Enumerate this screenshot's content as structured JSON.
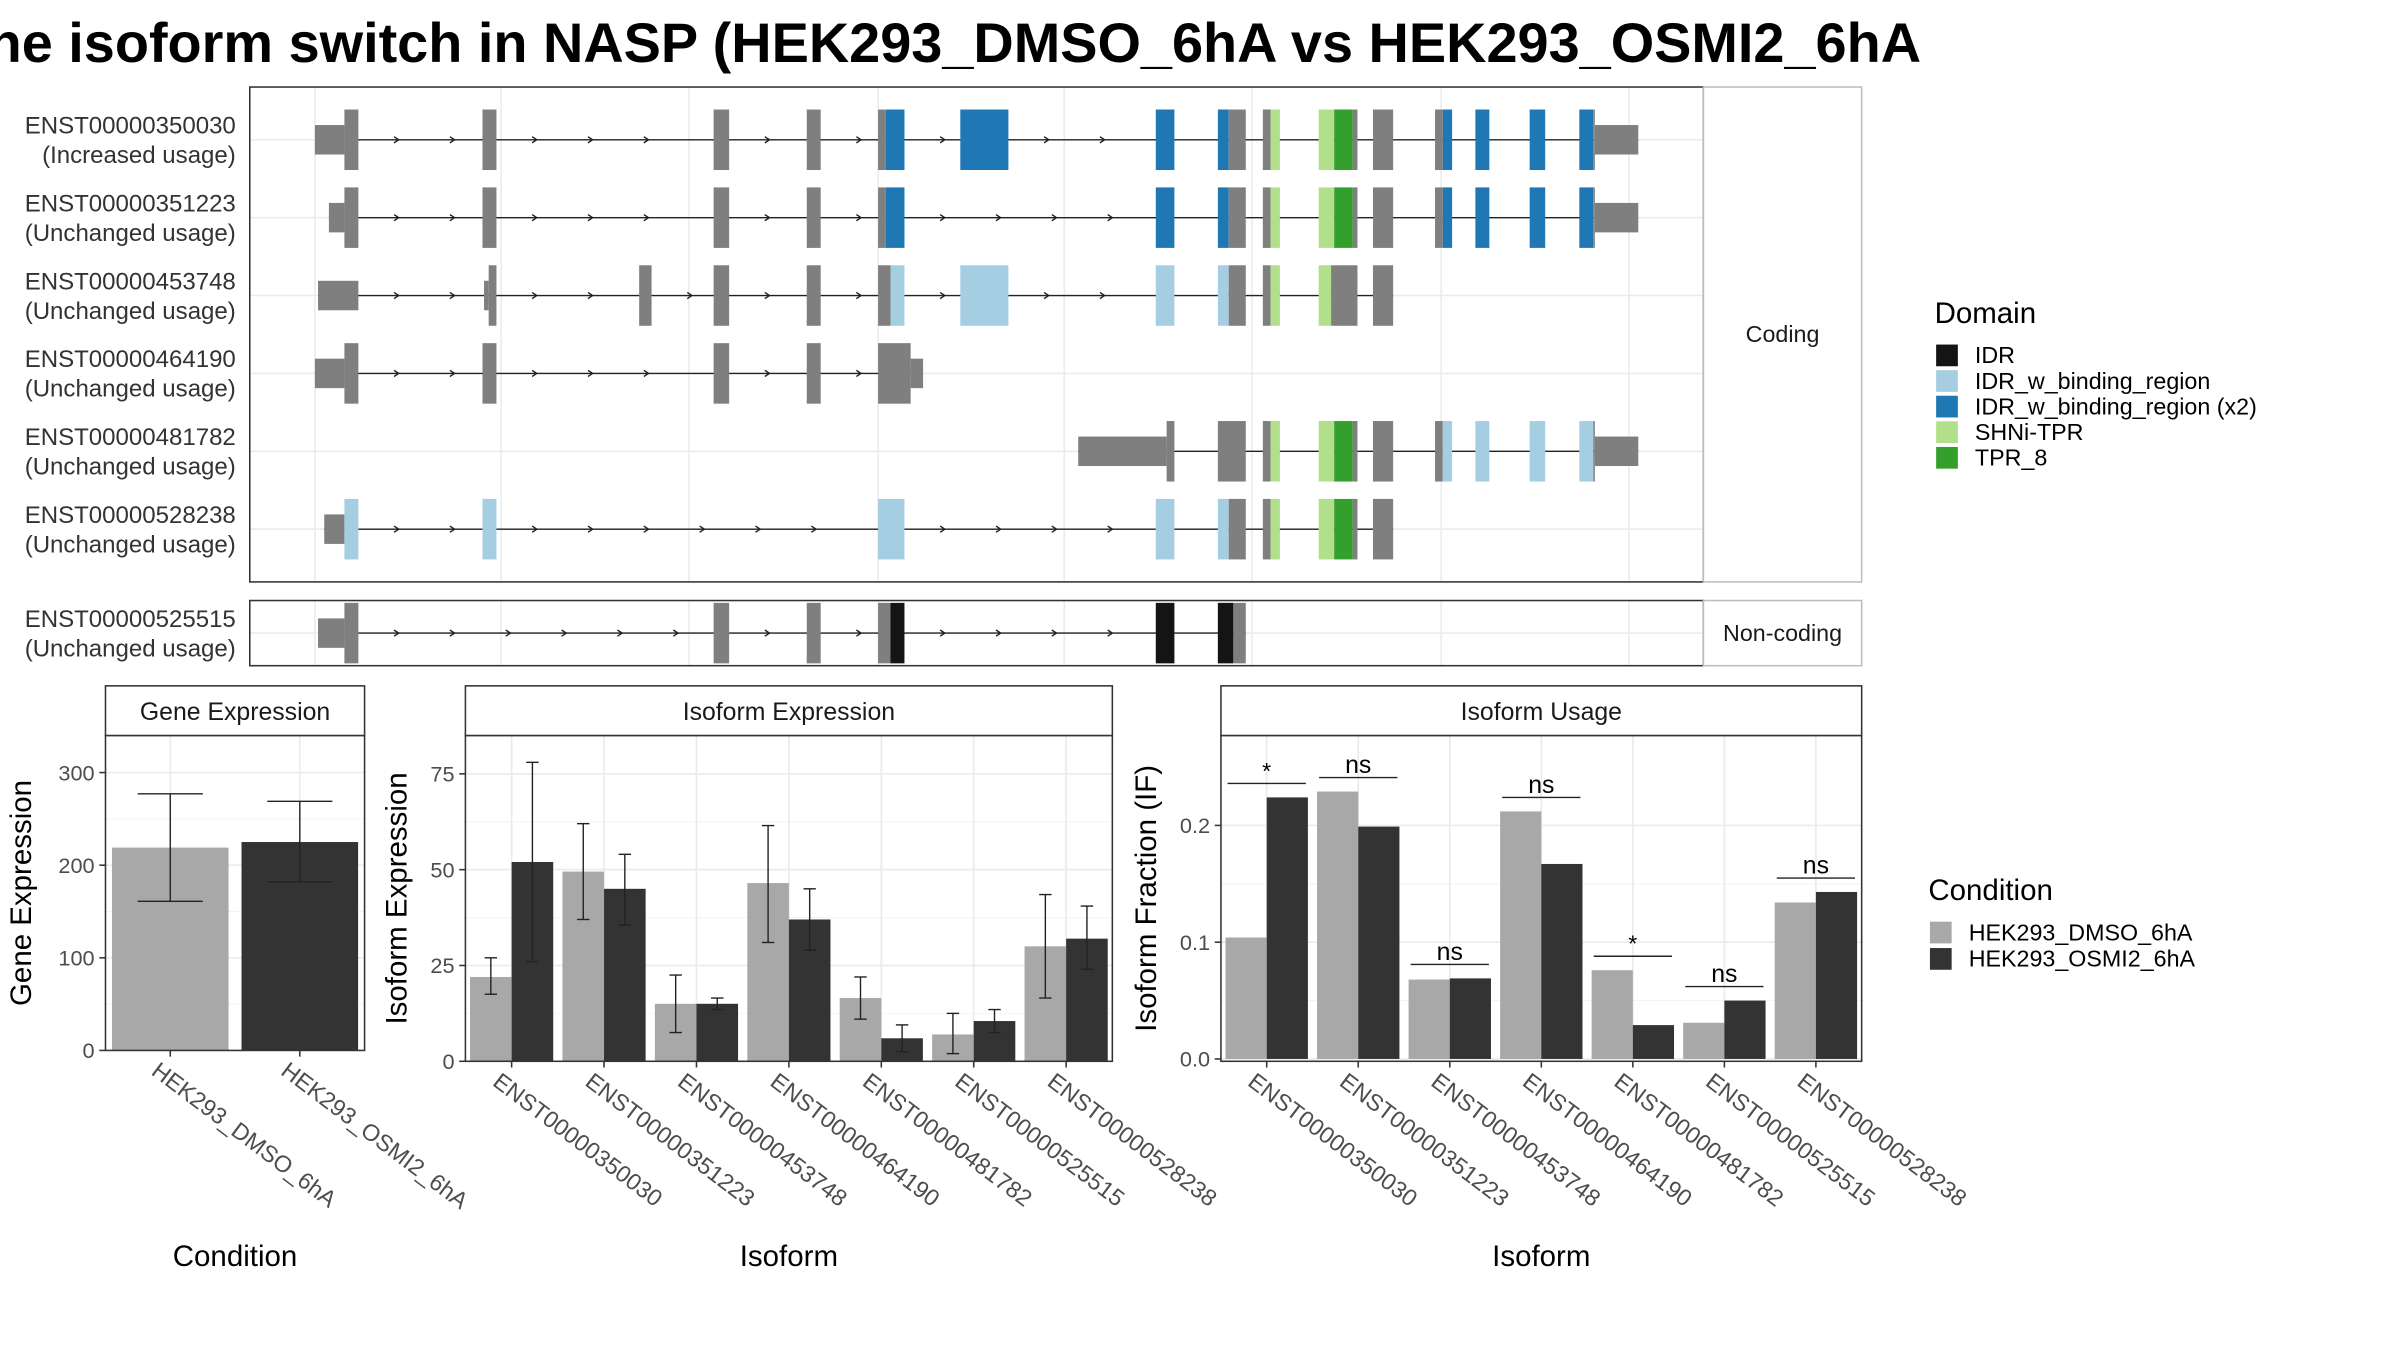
{
  "title": "he isoform switch in NASP (HEK293_DMSO_6hA vs HEK293_OSMI2_6hA",
  "colors": {
    "exon": "#7f7f7f",
    "IDR": "#141414",
    "IDR_w_binding_region": "#a6cee3",
    "IDR_w_binding_region (x2)": "#1f78b4",
    "SHNi-TPR": "#b2df8a",
    "TPR_8": "#33a02c",
    "HEK293_DMSO_6hA": "#a8a8a8",
    "HEK293_OSMI2_6hA": "#333333"
  },
  "structure": {
    "coding_strip": "Coding",
    "noncoding_strip": "Non-coding",
    "transcripts": [
      {
        "id": "ENST00000350030",
        "usage": "(Increased usage)",
        "group": "coding",
        "utr": [
          [
            203,
            222
          ],
          [
            1028,
            1056
          ]
        ],
        "exons": [
          [
            222,
            231
          ],
          [
            311,
            320
          ],
          [
            460,
            470
          ],
          [
            520,
            529
          ],
          [
            566,
            571
          ],
          [
            571,
            583,
            "IDR_w_binding_region (x2)"
          ],
          [
            619,
            650,
            "IDR_w_binding_region (x2)"
          ],
          [
            745,
            757,
            "IDR_w_binding_region (x2)"
          ],
          [
            785,
            792,
            "IDR_w_binding_region (x2)"
          ],
          [
            792,
            803
          ],
          [
            814,
            819
          ],
          [
            819,
            825,
            "SHNi-TPR"
          ],
          [
            850,
            860,
            "SHNi-TPR"
          ],
          [
            860,
            872,
            "TPR_8"
          ],
          [
            872,
            875
          ],
          [
            885,
            898
          ],
          [
            925,
            930
          ],
          [
            930,
            936,
            "IDR_w_binding_region (x2)"
          ],
          [
            951,
            960,
            "IDR_w_binding_region (x2)"
          ],
          [
            986,
            996,
            "IDR_w_binding_region (x2)"
          ],
          [
            1018,
            1027,
            "IDR_w_binding_region (x2)"
          ],
          [
            1027,
            1028
          ]
        ]
      },
      {
        "id": "ENST00000351223",
        "usage": "(Unchanged usage)",
        "group": "coding",
        "utr": [
          [
            212,
            222
          ],
          [
            1028,
            1056
          ]
        ],
        "exons": [
          [
            222,
            231
          ],
          [
            311,
            320
          ],
          [
            460,
            470
          ],
          [
            520,
            529
          ],
          [
            566,
            571
          ],
          [
            571,
            583,
            "IDR_w_binding_region (x2)"
          ],
          [
            745,
            757,
            "IDR_w_binding_region (x2)"
          ],
          [
            785,
            792,
            "IDR_w_binding_region (x2)"
          ],
          [
            792,
            803
          ],
          [
            814,
            819
          ],
          [
            819,
            825,
            "SHNi-TPR"
          ],
          [
            850,
            860,
            "SHNi-TPR"
          ],
          [
            860,
            872,
            "TPR_8"
          ],
          [
            872,
            875
          ],
          [
            885,
            898
          ],
          [
            925,
            930
          ],
          [
            930,
            936,
            "IDR_w_binding_region (x2)"
          ],
          [
            951,
            960,
            "IDR_w_binding_region (x2)"
          ],
          [
            986,
            996,
            "IDR_w_binding_region (x2)"
          ],
          [
            1018,
            1027,
            "IDR_w_binding_region (x2)"
          ],
          [
            1027,
            1028
          ]
        ]
      },
      {
        "id": "ENST00000453748",
        "usage": "(Unchanged usage)",
        "group": "coding",
        "utr": [
          [
            205,
            231
          ],
          [
            312,
            315
          ]
        ],
        "exons": [
          [
            315,
            320
          ],
          [
            412,
            420
          ],
          [
            460,
            470
          ],
          [
            520,
            529
          ],
          [
            566,
            574
          ],
          [
            574,
            583,
            "IDR_w_binding_region"
          ],
          [
            619,
            650,
            "IDR_w_binding_region"
          ],
          [
            745,
            757,
            "IDR_w_binding_region"
          ],
          [
            785,
            792,
            "IDR_w_binding_region"
          ],
          [
            792,
            803
          ],
          [
            814,
            819
          ],
          [
            819,
            825,
            "SHNi-TPR"
          ],
          [
            850,
            858,
            "SHNi-TPR"
          ],
          [
            858,
            875
          ],
          [
            885,
            898
          ]
        ]
      },
      {
        "id": "ENST00000464190",
        "usage": "(Unchanged usage)",
        "group": "coding",
        "utr": [
          [
            203,
            222
          ],
          [
            587,
            595
          ]
        ],
        "exons": [
          [
            222,
            231
          ],
          [
            311,
            320
          ],
          [
            460,
            470
          ],
          [
            520,
            529
          ],
          [
            566,
            587
          ]
        ]
      },
      {
        "id": "ENST00000481782",
        "usage": "(Unchanged usage)",
        "group": "coding",
        "utr": [
          [
            695,
            752
          ],
          [
            1028,
            1056
          ]
        ],
        "exons": [
          [
            752,
            757
          ],
          [
            785,
            803
          ],
          [
            814,
            819
          ],
          [
            819,
            825,
            "SHNi-TPR"
          ],
          [
            850,
            860,
            "SHNi-TPR"
          ],
          [
            860,
            872,
            "TPR_8"
          ],
          [
            872,
            875
          ],
          [
            885,
            898
          ],
          [
            925,
            930
          ],
          [
            930,
            936,
            "IDR_w_binding_region"
          ],
          [
            951,
            960,
            "IDR_w_binding_region"
          ],
          [
            986,
            996,
            "IDR_w_binding_region"
          ],
          [
            1018,
            1027,
            "IDR_w_binding_region"
          ],
          [
            1027,
            1028
          ]
        ]
      },
      {
        "id": "ENST00000528238",
        "usage": "(Unchanged usage)",
        "group": "coding",
        "utr": [
          [
            209,
            222
          ]
        ],
        "exons": [
          [
            222,
            231,
            "IDR_w_binding_region"
          ],
          [
            311,
            320,
            "IDR_w_binding_region"
          ],
          [
            566,
            583,
            "IDR_w_binding_region"
          ],
          [
            745,
            757,
            "IDR_w_binding_region"
          ],
          [
            785,
            792,
            "IDR_w_binding_region"
          ],
          [
            792,
            803
          ],
          [
            814,
            819
          ],
          [
            819,
            825,
            "SHNi-TPR"
          ],
          [
            850,
            860,
            "SHNi-TPR"
          ],
          [
            860,
            872,
            "TPR_8"
          ],
          [
            872,
            875
          ],
          [
            885,
            898
          ]
        ]
      },
      {
        "id": "ENST00000525515",
        "usage": "(Unchanged usage)",
        "group": "noncoding",
        "utr": [
          [
            205,
            222
          ]
        ],
        "exons": [
          [
            222,
            231
          ],
          [
            460,
            470
          ],
          [
            520,
            529
          ],
          [
            566,
            574
          ],
          [
            574,
            583,
            "IDR"
          ],
          [
            745,
            757,
            "IDR"
          ],
          [
            785,
            795,
            "IDR"
          ],
          [
            795,
            803
          ]
        ]
      }
    ]
  },
  "legends": {
    "domain": {
      "title": "Domain",
      "items": [
        "IDR",
        "IDR_w_binding_region",
        "IDR_w_binding_region (x2)",
        "SHNi-TPR",
        "TPR_8"
      ]
    },
    "condition": {
      "title": "Condition",
      "items": [
        "HEK293_DMSO_6hA",
        "HEK293_OSMI2_6hA"
      ]
    }
  },
  "chart_data": [
    {
      "type": "bar",
      "title": "Gene Expression",
      "xlabel": "Condition",
      "ylabel": "Gene Expression",
      "ylim": [
        0,
        340
      ],
      "yticks": [
        0,
        100,
        200,
        300
      ],
      "categories": [
        "HEK293_DMSO_6hA",
        "HEK293_OSMI2_6hA"
      ],
      "series": [
        {
          "values": [
            219,
            225
          ],
          "err_low": [
            161,
            182
          ],
          "err_high": [
            277,
            269
          ]
        }
      ]
    },
    {
      "type": "bar",
      "title": "Isoform Expression",
      "xlabel": "Isoform",
      "ylabel": "Isoform Expression",
      "ylim": [
        0,
        85
      ],
      "yticks": [
        0,
        25,
        50,
        75
      ],
      "categories": [
        "ENST00000350030",
        "ENST00000351223",
        "ENST00000453748",
        "ENST00000464190",
        "ENST00000481782",
        "ENST00000525515",
        "ENST00000528238"
      ],
      "series": [
        {
          "name": "HEK293_DMSO_6hA",
          "values": [
            22,
            49.5,
            15,
            46.5,
            16.5,
            7,
            30
          ],
          "err_low": [
            17.5,
            37,
            7.5,
            31,
            11,
            2,
            16.5
          ],
          "err_high": [
            27,
            62,
            22.5,
            61.5,
            22,
            12.5,
            43.5
          ]
        },
        {
          "name": "HEK293_OSMI2_6hA",
          "values": [
            52,
            45,
            15,
            37,
            6,
            10.5,
            32
          ],
          "err_low": [
            26,
            35.5,
            13.5,
            29,
            2.5,
            7.5,
            24
          ],
          "err_high": [
            78,
            54,
            16.5,
            45,
            9.5,
            13.5,
            40.5
          ]
        }
      ]
    },
    {
      "type": "bar",
      "title": "Isoform Usage",
      "xlabel": "Isoform",
      "ylabel": "Isoform Fraction (IF)",
      "ylim": [
        -0.002,
        0.277
      ],
      "yticks": [
        "0.0",
        "0.1",
        "0.2"
      ],
      "categories": [
        "ENST00000350030",
        "ENST00000351223",
        "ENST00000453748",
        "ENST00000464190",
        "ENST00000481782",
        "ENST00000525515",
        "ENST00000528238"
      ],
      "series": [
        {
          "name": "HEK293_DMSO_6hA",
          "values": [
            0.104,
            0.229,
            0.068,
            0.212,
            0.076,
            0.031,
            0.134
          ]
        },
        {
          "name": "HEK293_OSMI2_6hA",
          "values": [
            0.224,
            0.199,
            0.069,
            0.167,
            0.029,
            0.05,
            0.143
          ]
        }
      ],
      "significance": [
        "*",
        "ns",
        "ns",
        "ns",
        "*",
        "ns",
        "ns"
      ]
    }
  ]
}
